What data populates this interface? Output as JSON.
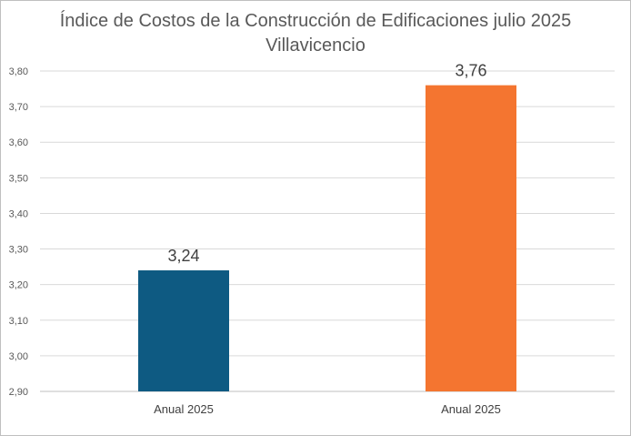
{
  "chart_data": {
    "type": "bar",
    "title": "Índice de Costos de la Construcción de Edificaciones julio 2025",
    "subtitle": "Villavicencio",
    "categories": [
      "Anual 2025",
      "Anual 2025"
    ],
    "values": [
      3.24,
      3.76
    ],
    "data_labels": [
      "3,24",
      "3,76"
    ],
    "bar_colors": [
      "#0e5a82",
      "#f47530"
    ],
    "ylim": [
      2.9,
      3.8
    ],
    "yticks": [
      "2,90",
      "3,00",
      "3,10",
      "3,20",
      "3,30",
      "3,40",
      "3,50",
      "3,60",
      "3,70",
      "3,80"
    ],
    "grid": true,
    "legend": "none"
  }
}
